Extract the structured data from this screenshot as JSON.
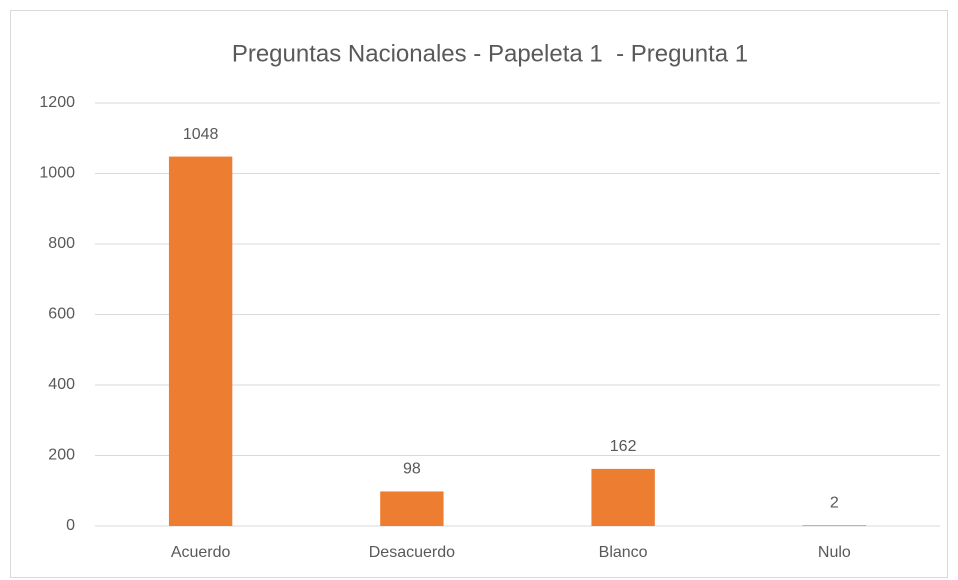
{
  "chart_data": {
    "type": "bar",
    "title": "Preguntas Nacionales - Papeleta 1  - Pregunta 1",
    "categories": [
      "Acuerdo",
      "Desacuerdo",
      "Blanco",
      "Nulo"
    ],
    "values": [
      1048,
      98,
      162,
      2
    ],
    "color": "#ed7d31",
    "ylim": [
      0,
      1200
    ],
    "yticks": [
      0,
      200,
      400,
      600,
      800,
      1000,
      1200
    ],
    "grid": true,
    "data_labels": true
  }
}
